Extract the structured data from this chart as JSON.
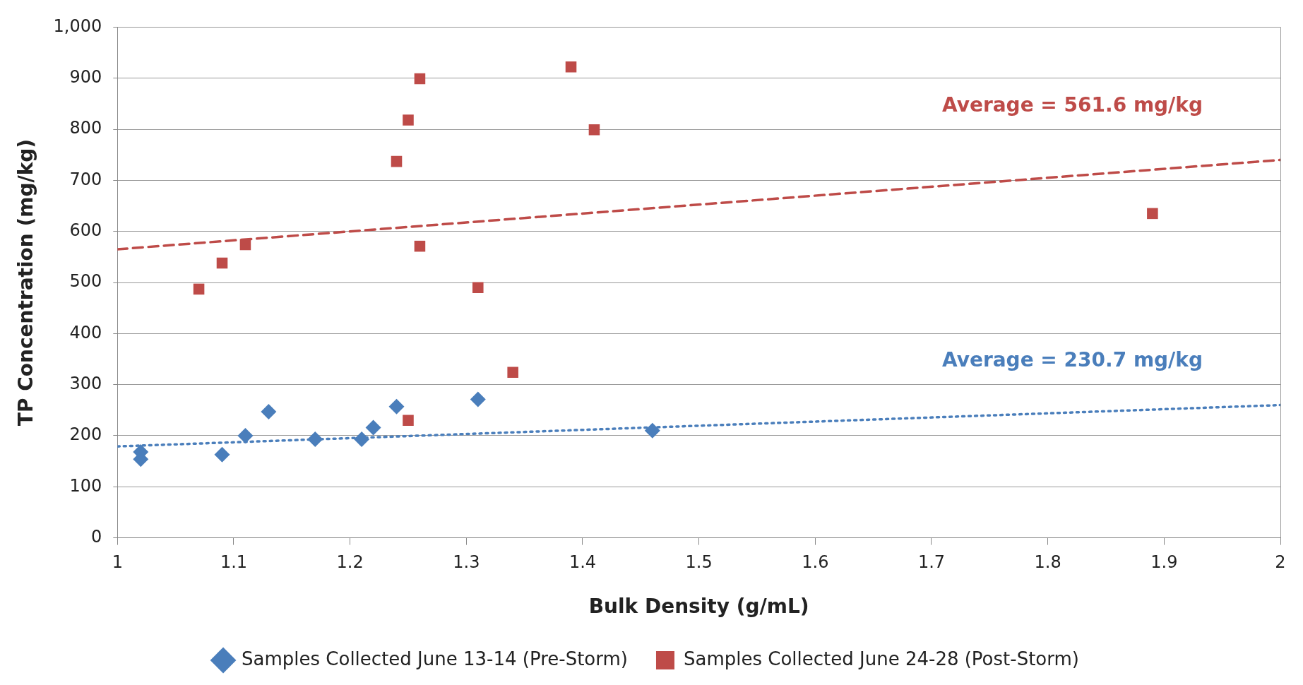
{
  "chart_data": {
    "type": "scatter",
    "xlabel": "Bulk Density (g/mL)",
    "ylabel": "TP Concentration (mg/kg)",
    "xlim": [
      1,
      2
    ],
    "xticks": [
      1,
      1.1,
      1.2,
      1.3,
      1.4,
      1.5,
      1.6,
      1.7,
      1.8,
      1.9,
      2
    ],
    "ylim": [
      0,
      1000
    ],
    "yticks": [
      0,
      100,
      200,
      300,
      400,
      500,
      600,
      700,
      800,
      900,
      {
        "value": 1000,
        "label": "1,000"
      }
    ],
    "grid": "y",
    "legend": "bottom",
    "series": [
      {
        "name": "Samples Collected June 13-14 (Pre-Storm)",
        "color": "#4a7ebb",
        "marker": "diamond",
        "x": [
          1.02,
          1.02,
          1.09,
          1.11,
          1.13,
          1.17,
          1.21,
          1.22,
          1.24,
          1.31,
          1.46
        ],
        "values": [
          168,
          154,
          163,
          200,
          247,
          193,
          193,
          216,
          257,
          271,
          210
        ]
      },
      {
        "name": "Samples Collected June 24-28 (Post-Storm)",
        "color": "#be4b48",
        "marker": "square",
        "x": [
          1.07,
          1.09,
          1.11,
          1.24,
          1.25,
          1.26,
          1.26,
          1.31,
          1.39,
          1.41,
          1.34,
          1.25,
          1.89
        ],
        "values": [
          487,
          538,
          574,
          737,
          818,
          899,
          571,
          490,
          922,
          799,
          324,
          230,
          635
        ]
      },
      {
        "type": "line",
        "color": "#4a7ebb",
        "line_style": "dotted",
        "marker": "none",
        "x": [
          1,
          2
        ],
        "values": [
          179,
          260
        ]
      },
      {
        "type": "line",
        "color": "#be4b48",
        "line_style": "dashed",
        "marker": "none",
        "x": [
          1,
          2
        ],
        "values": [
          565,
          740
        ]
      }
    ],
    "annotations": [
      "Average = 230.7 mg/kg",
      "Average = 561.6 mg/kg"
    ]
  }
}
